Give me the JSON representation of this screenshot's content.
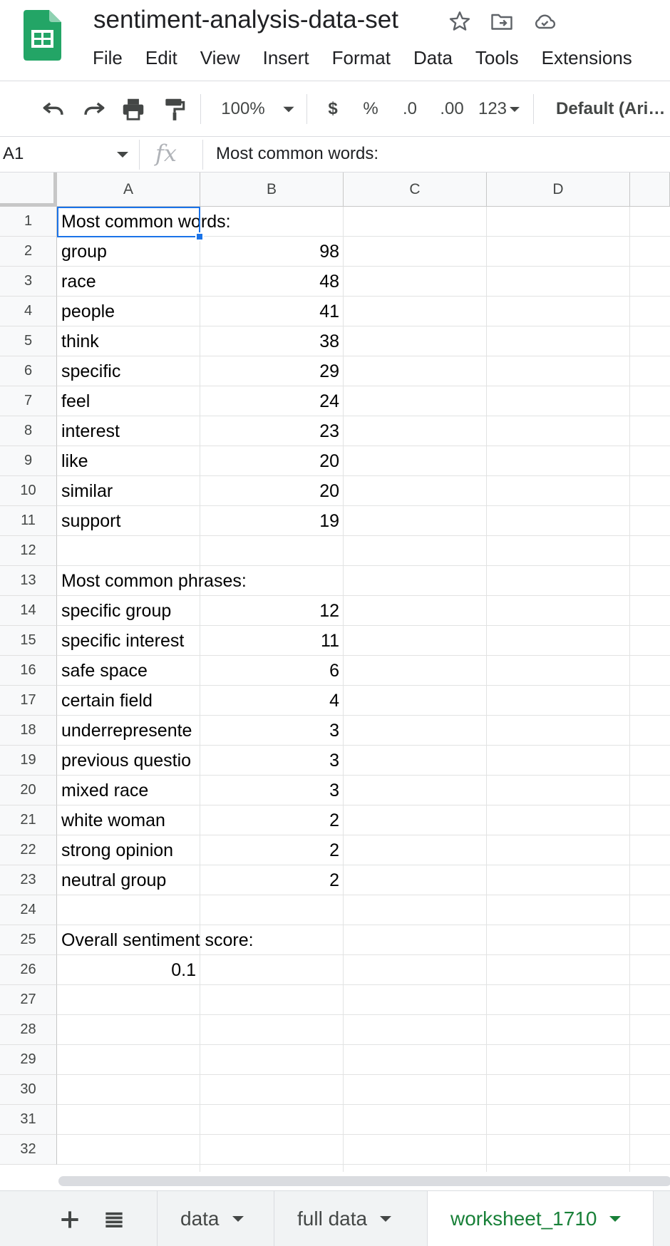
{
  "app": {
    "doc_title": "sentiment-analysis-data-set",
    "brand_color": "#23a566",
    "menu": [
      "File",
      "Edit",
      "View",
      "Insert",
      "Format",
      "Data",
      "Tools",
      "Extensions"
    ]
  },
  "toolbar": {
    "zoom": "100%",
    "currency": "$",
    "percent": "%",
    "decrease_decimal": ".0",
    "increase_decimal": ".00",
    "more_formats": "123",
    "font": "Default (Ari…",
    "icons": [
      "undo-icon",
      "redo-icon",
      "print-icon",
      "paint-format-icon"
    ]
  },
  "formula_bar": {
    "cell_ref": "A1",
    "fx": "fx",
    "content": "Most common words:"
  },
  "grid": {
    "columns": [
      "A",
      "B",
      "C",
      "D"
    ],
    "rows": [
      "1",
      "2",
      "3",
      "4",
      "5",
      "6",
      "7",
      "8",
      "9",
      "10",
      "11",
      "12",
      "13",
      "14",
      "15",
      "16",
      "17",
      "18",
      "19",
      "20",
      "21",
      "22",
      "23",
      "24",
      "25",
      "26",
      "27",
      "28",
      "29",
      "30",
      "31",
      "32"
    ],
    "cells": {
      "A1": "Most common words:",
      "A2": "group",
      "B2": "98",
      "A3": "race",
      "B3": "48",
      "A4": "people",
      "B4": "41",
      "A5": "think",
      "B5": "38",
      "A6": "specific",
      "B6": "29",
      "A7": "feel",
      "B7": "24",
      "A8": "interest",
      "B8": "23",
      "A9": "like",
      "B9": "20",
      "A10": "similar",
      "B10": "20",
      "A11": "support",
      "B11": "19",
      "A13": "Most common phrases:",
      "A14": "specific group",
      "B14": "12",
      "A15": "specific interest",
      "B15": "11",
      "A16": "safe space",
      "B16": "6",
      "A17": "certain field",
      "B17": "4",
      "A18": "underrepresente",
      "B18": "3",
      "A19": "previous questio",
      "B19": "3",
      "A20": "mixed race",
      "B20": "3",
      "A21": "white woman",
      "B21": "2",
      "A22": "strong opinion",
      "B22": "2",
      "A23": "neutral group",
      "B23": "2",
      "A25": "Overall sentiment score:",
      "A26": "0.1"
    },
    "selected_cell": "A1",
    "selection_color": "#1a73e8"
  },
  "sheets": {
    "tabs": [
      {
        "label": "data",
        "active": false
      },
      {
        "label": "full data",
        "active": false
      },
      {
        "label": "worksheet_1710",
        "active": true
      }
    ],
    "active_color": "#188038"
  }
}
